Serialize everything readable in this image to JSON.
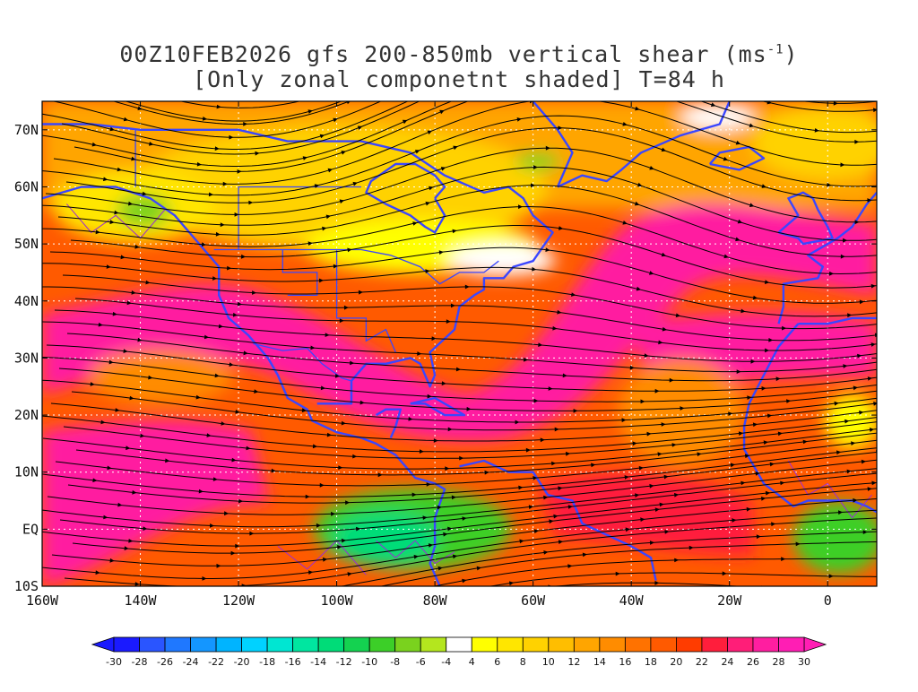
{
  "title": {
    "line1": "00Z10FEB2026 gfs 200-850mb vertical shear (ms",
    "line1_sup": "-1",
    "line1_end": ")",
    "line2": "[Only zonal componetnt shaded] T=84 h"
  },
  "map": {
    "lon_range": [
      -160,
      10
    ],
    "lat_range": [
      -10,
      75
    ],
    "lon_labels": [
      {
        "lon": -160,
        "label": "160W"
      },
      {
        "lon": -140,
        "label": "140W"
      },
      {
        "lon": -120,
        "label": "120W"
      },
      {
        "lon": -100,
        "label": "100W"
      },
      {
        "lon": -80,
        "label": "80W"
      },
      {
        "lon": -60,
        "label": "60W"
      },
      {
        "lon": -40,
        "label": "40W"
      },
      {
        "lon": -20,
        "label": "20W"
      },
      {
        "lon": 0,
        "label": "0"
      }
    ],
    "lat_labels": [
      {
        "lat": 70,
        "label": "70N"
      },
      {
        "lat": 60,
        "label": "60N"
      },
      {
        "lat": 50,
        "label": "50N"
      },
      {
        "lat": 40,
        "label": "40N"
      },
      {
        "lat": 30,
        "label": "30N"
      },
      {
        "lat": 20,
        "label": "20N"
      },
      {
        "lat": 10,
        "label": "10N"
      },
      {
        "lat": 0,
        "label": "EQ"
      },
      {
        "lat": -10,
        "label": "10S"
      }
    ],
    "coast_color": "#3a46ff",
    "contour_color": "#9a2bd6",
    "streamline_color": "#000000"
  },
  "colorbar": {
    "labels": [
      "-30",
      "-28",
      "-26",
      "-24",
      "-22",
      "-20",
      "-18",
      "-16",
      "-14",
      "-12",
      "-10",
      "-8",
      "-6",
      "-4",
      "4",
      "6",
      "8",
      "10",
      "12",
      "14",
      "16",
      "18",
      "20",
      "22",
      "24",
      "26",
      "28",
      "30"
    ],
    "colors": [
      "#1a1aff",
      "#2a55ff",
      "#1f78ff",
      "#1496ff",
      "#00b4ff",
      "#00d2ff",
      "#00e6d2",
      "#00e6a0",
      "#00dc78",
      "#14d250",
      "#3ccf28",
      "#7ad21e",
      "#b4e61e",
      "#ffffff",
      "#ffff00",
      "#ffe600",
      "#ffd200",
      "#ffbe00",
      "#ffa500",
      "#ff8c00",
      "#ff7200",
      "#ff5a00",
      "#ff3c00",
      "#ff1e3c",
      "#ff1e78",
      "#ff1ea0",
      "#ff1eb4"
    ]
  }
}
